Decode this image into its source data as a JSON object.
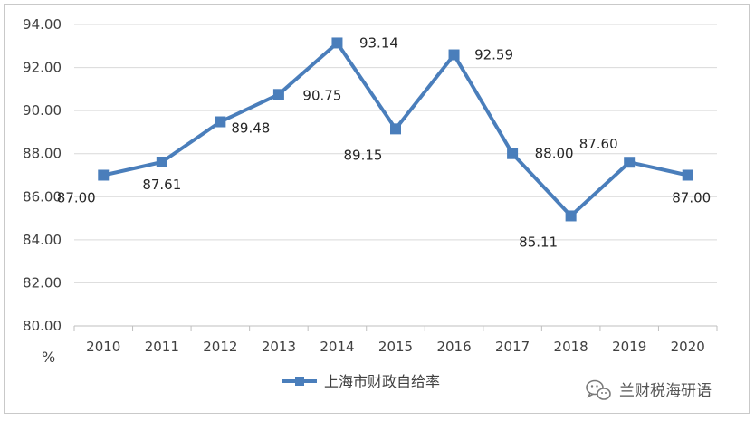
{
  "chart_data": {
    "type": "line",
    "title": "",
    "xlabel": "",
    "ylabel": "%",
    "categories": [
      "2010",
      "2011",
      "2012",
      "2013",
      "2014",
      "2015",
      "2016",
      "2017",
      "2018",
      "2019",
      "2020"
    ],
    "series": [
      {
        "name": "上海市财政自给率",
        "values": [
          87.0,
          87.61,
          89.48,
          90.75,
          93.14,
          89.15,
          92.59,
          88.0,
          85.11,
          87.6,
          87.0
        ],
        "labels": [
          "87.00",
          "87.61",
          "89.48",
          "90.75",
          "93.14",
          "89.15",
          "92.59",
          "88.00",
          "85.11",
          "87.60",
          "87.00"
        ],
        "color": "#4a7ebb"
      }
    ],
    "ylim": [
      80,
      94
    ],
    "yticks": [
      "80.00",
      "82.00",
      "84.00",
      "86.00",
      "88.00",
      "90.00",
      "92.00",
      "94.00"
    ],
    "grid": true,
    "legend": "bottom"
  },
  "watermark": {
    "text": "兰财税海研语",
    "icon": "wechat-icon"
  },
  "colors": {
    "series": "#4a7ebb",
    "grid": "#d9d9d9",
    "text": "#404040"
  }
}
